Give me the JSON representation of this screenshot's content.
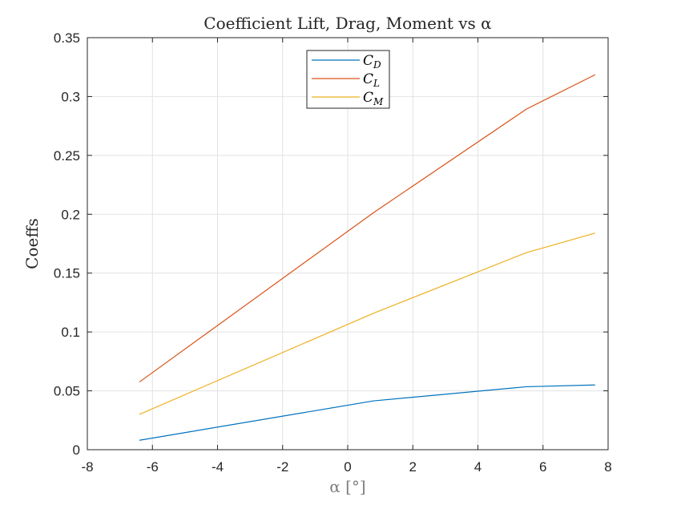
{
  "chart_data": {
    "type": "line",
    "title": "Coefficient Lift, Drag, Moment vs α",
    "xlabel": "α [°]",
    "ylabel": "Coeffs",
    "xlim": [
      -8,
      8
    ],
    "ylim": [
      0,
      0.35
    ],
    "xticks": [
      -8,
      -6,
      -4,
      -2,
      0,
      2,
      4,
      6,
      8
    ],
    "yticks": [
      0,
      0.05,
      0.1,
      0.15,
      0.2,
      0.25,
      0.3,
      0.35
    ],
    "xtick_labels": [
      "-8",
      "-6",
      "-4",
      "-2",
      "0",
      "2",
      "4",
      "6",
      "8"
    ],
    "ytick_labels": [
      "0",
      "0.05",
      "0.1",
      "0.15",
      "0.2",
      "0.25",
      "0.3",
      "0.35"
    ],
    "grid": true,
    "legend_position": "top-center",
    "x": [
      -6.4,
      0.8,
      5.5,
      7.6
    ],
    "series": [
      {
        "name": "C_D",
        "label_main": "C",
        "label_sub": "D",
        "color": "#0072BD",
        "values": [
          0.008,
          0.0415,
          0.0535,
          0.055
        ]
      },
      {
        "name": "C_L",
        "label_main": "C",
        "label_sub": "L",
        "color": "#D95319",
        "values": [
          0.0575,
          0.2015,
          0.2895,
          0.3185
        ]
      },
      {
        "name": "C_M",
        "label_main": "C",
        "label_sub": "M",
        "color": "#EDB120",
        "values": [
          0.03,
          0.116,
          0.1675,
          0.184
        ]
      }
    ]
  }
}
